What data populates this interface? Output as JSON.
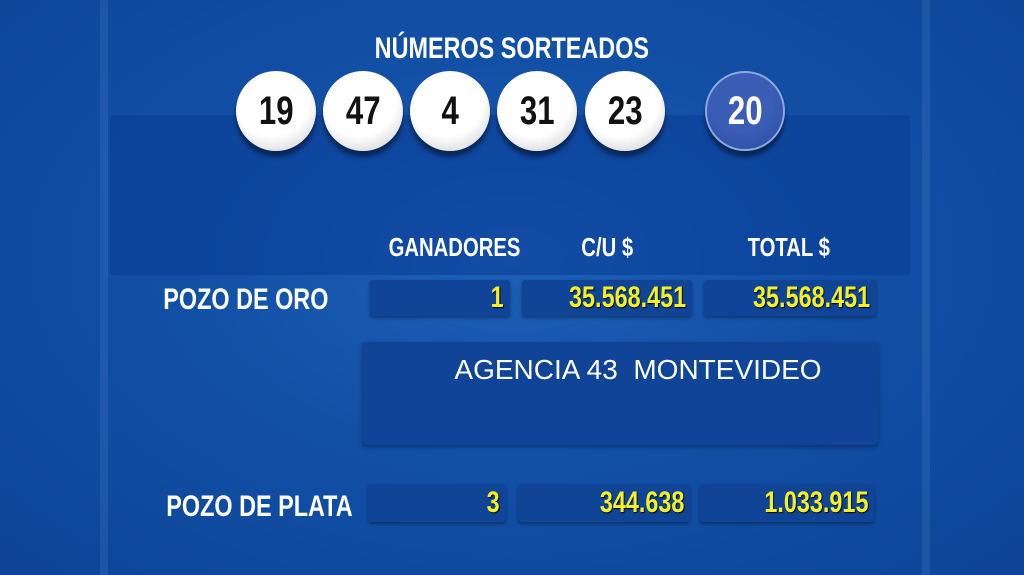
{
  "title": "NÚMEROS SORTEADOS",
  "balls": [
    "19",
    "47",
    "4",
    "31",
    "23"
  ],
  "extra_ball": "20",
  "headers": {
    "winners": "GANADORES",
    "each": "C/U $",
    "total": "TOTAL $"
  },
  "prizes": [
    {
      "label": "POZO DE ORO",
      "winners": "1",
      "each": "35.568.451",
      "total": "35.568.451"
    },
    {
      "label": "POZO DE PLATA",
      "winners": "3",
      "each": "344.638",
      "total": "1.033.915"
    }
  ],
  "agency": "AGENCIA 43  MONTEVIDEO",
  "colors": {
    "background": "#1250a6",
    "box": "#0f4496",
    "amount": "#f3f02a"
  }
}
